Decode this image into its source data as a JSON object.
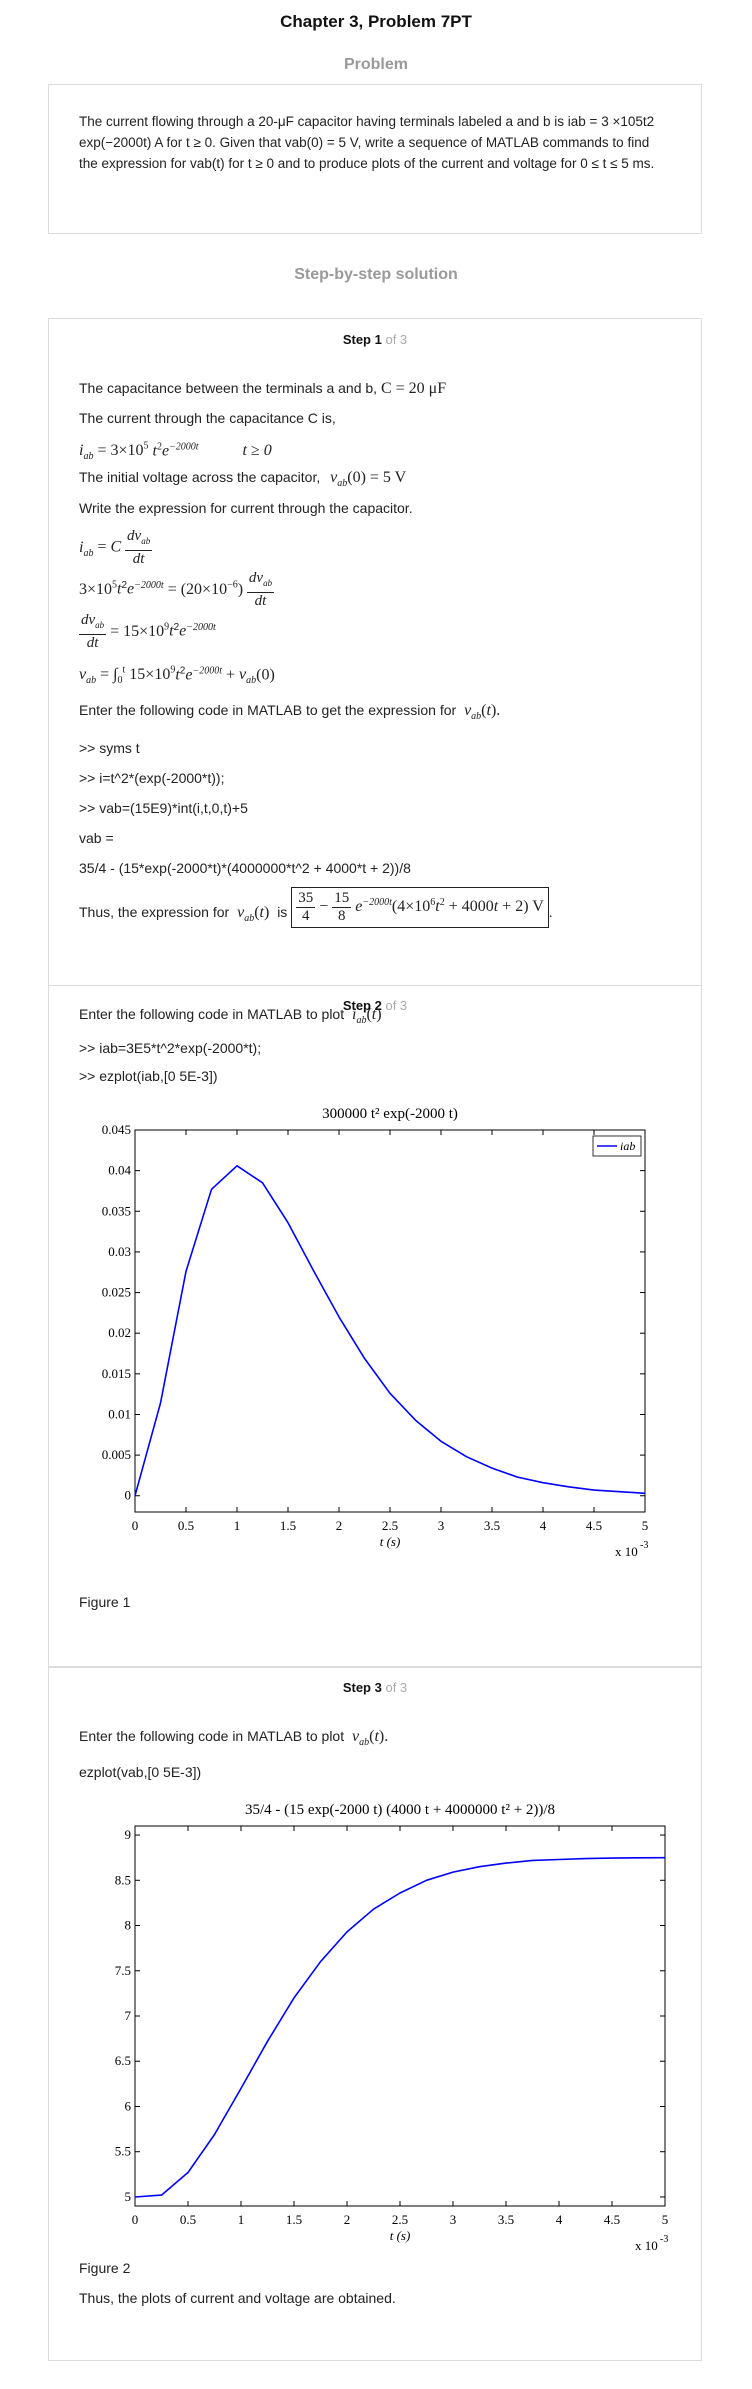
{
  "header": {
    "title": "Chapter 3, Problem 7PT",
    "problem_label": "Problem",
    "solution_label": "Step-by-step solution"
  },
  "problem": {
    "text": "The current flowing through a 20-μF capacitor having terminals labeled a and b is iab = 3 ×105t2 exp(−2000t) A for t ≥ 0. Given that vab(0) = 5 V, write a sequence of MATLAB commands to find the expression for vab(t) for t ≥ 0 and to produce plots of the current and voltage for 0 ≤ t ≤ 5 ms."
  },
  "step1": {
    "label": "Step 1",
    "of": "of 3",
    "line1": "The capacitance between the terminals a and b,",
    "line1_math": "C = 20 μF",
    "line2": "The current through the capacitance C is,",
    "eq_current": "i_ab = 3×10⁵ t² e^(−2000t)",
    "eq_current_cond": "t ≥ 0",
    "line3": "The initial voltage across the capacitor,",
    "line3_math": "v_ab(0) = 5 V",
    "line4": "Write the expression for current through the capacitor.",
    "line5": "Enter the following code in MATLAB to get the expression for",
    "code": [
      ">> syms t",
      ">> i=t^2*(exp(-2000*t));",
      ">> vab=(15E9)*int(i,t,0,t)+5",
      "vab =",
      "35/4 - (15*exp(-2000*t)*(4000000*t^2 + 4000*t + 2))/8"
    ],
    "conclusion_pre": "Thus, the expression for",
    "conclusion_is": "is"
  },
  "step2": {
    "label": "Step 2",
    "of": "of 3",
    "line1": "Enter the following code in MATLAB to plot",
    "code": [
      ">> iab=3E5*t^2*exp(-2000*t);",
      ">> ezplot(iab,[0 5E-3])"
    ],
    "figure_caption": "Figure 1"
  },
  "step3": {
    "label": "Step 3",
    "of": "of 3",
    "line1": "Enter the following code in MATLAB to plot",
    "code": [
      "ezplot(vab,[0 5E-3])"
    ],
    "figure_caption": "Figure 2",
    "conclusion": "Thus, the plots of current and voltage are obtained."
  },
  "chart_data": [
    {
      "type": "line",
      "title": "300000 t² exp(-2000 t)",
      "xlabel": "t (s)",
      "x_multiplier": "x 10^-3",
      "xlim": [
        0,
        5
      ],
      "ylim": [
        -0.002,
        0.045
      ],
      "xticks": [
        "0",
        "0.5",
        "1",
        "1.5",
        "2",
        "2.5",
        "3",
        "3.5",
        "4",
        "4.5",
        "5"
      ],
      "yticks": [
        "0",
        "0.005",
        "0.01",
        "0.015",
        "0.02",
        "0.025",
        "0.03",
        "0.035",
        "0.04",
        "0.045"
      ],
      "series": [
        {
          "name": "iab",
          "color": "#0000ff",
          "x": [
            0,
            0.25,
            0.5,
            0.75,
            1,
            1.25,
            1.5,
            1.75,
            2,
            2.25,
            2.5,
            2.75,
            3,
            3.25,
            3.5,
            3.75,
            4,
            4.25,
            4.5,
            4.75,
            5
          ],
          "y": [
            0,
            0.0114,
            0.0276,
            0.0377,
            0.0406,
            0.0385,
            0.0336,
            0.0277,
            0.022,
            0.0169,
            0.0126,
            0.0093,
            0.0067,
            0.0048,
            0.0034,
            0.0023,
            0.0016,
            0.0011,
            0.0007,
            0.0005,
            0.0003
          ]
        }
      ],
      "legend": "top-right"
    },
    {
      "type": "line",
      "title": "35/4 - (15 exp(-2000 t) (4000 t + 4000000 t² + 2))/8",
      "xlabel": "t (s)",
      "x_multiplier": "x 10^-3",
      "xlim": [
        0,
        5
      ],
      "ylim": [
        4.9,
        9.1
      ],
      "xticks": [
        "0",
        "0.5",
        "1",
        "1.5",
        "2",
        "2.5",
        "3",
        "3.5",
        "4",
        "4.5",
        "5"
      ],
      "yticks": [
        "5",
        "5.5",
        "6",
        "6.5",
        "7",
        "7.5",
        "8",
        "8.5",
        "9"
      ],
      "series": [
        {
          "color": "#0000ff",
          "x": [
            0,
            0.25,
            0.5,
            0.75,
            1,
            1.25,
            1.5,
            1.75,
            2,
            2.25,
            2.5,
            2.75,
            3,
            3.25,
            3.5,
            3.75,
            4,
            4.25,
            4.5,
            4.75,
            5
          ],
          "y": [
            5,
            5.02,
            5.27,
            5.69,
            6.2,
            6.72,
            7.2,
            7.6,
            7.93,
            8.18,
            8.36,
            8.5,
            8.59,
            8.65,
            8.69,
            8.72,
            8.73,
            8.74,
            8.745,
            8.748,
            8.75
          ]
        }
      ]
    }
  ]
}
